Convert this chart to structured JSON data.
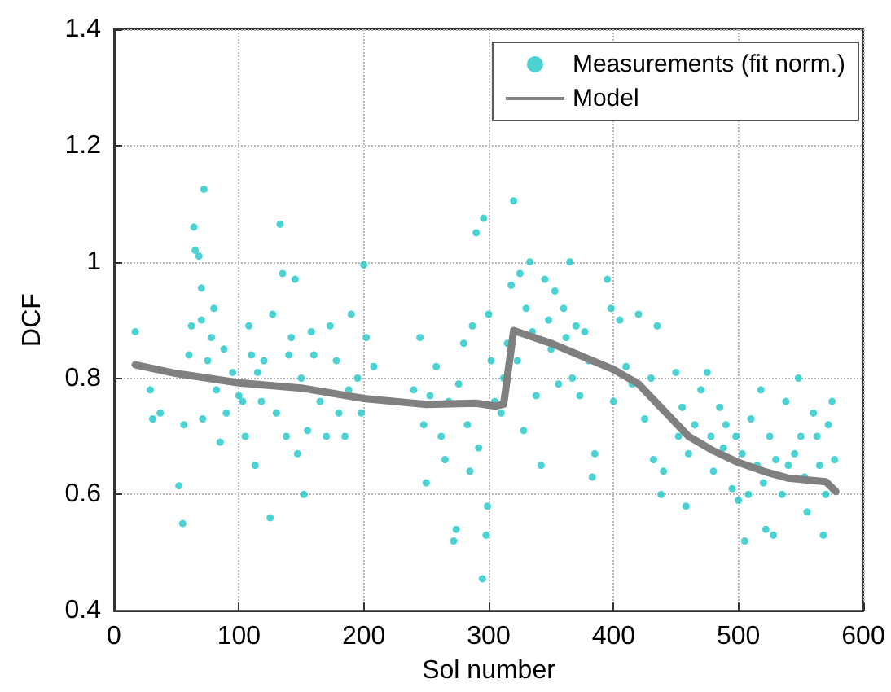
{
  "chart_data": {
    "type": "scatter",
    "xlabel": "Sol number",
    "ylabel": "DCF",
    "xlim": [
      0,
      600
    ],
    "xticks": [
      0,
      100,
      200,
      300,
      400,
      500,
      600
    ],
    "ylim": [
      0.4,
      1.4
    ],
    "yticks": [
      0.4,
      0.6,
      0.8,
      1,
      1.2,
      1.4
    ],
    "grid": true,
    "legend": "top right",
    "marker": "circle",
    "series": [
      {
        "name": "Measurements (fit norm.)",
        "color": "#1ec8c8",
        "x": [
          17,
          29,
          31,
          37,
          52,
          55,
          56,
          60,
          62,
          64,
          65,
          68,
          70,
          70,
          71,
          72,
          75,
          78,
          80,
          82,
          85,
          88,
          90,
          95,
          100,
          103,
          105,
          108,
          110,
          113,
          115,
          118,
          120,
          125,
          127,
          130,
          133,
          135,
          138,
          140,
          142,
          145,
          147,
          150,
          152,
          155,
          158,
          160,
          165,
          170,
          173,
          178,
          180,
          185,
          188,
          190,
          195,
          198,
          200,
          202,
          208,
          240,
          245,
          248,
          250,
          253,
          258,
          262,
          265,
          268,
          272,
          274,
          276,
          280,
          283,
          285,
          287,
          290,
          292,
          295,
          296,
          298,
          299,
          300,
          302,
          305,
          310,
          312,
          315,
          318,
          320,
          323,
          325,
          328,
          330,
          333,
          335,
          338,
          342,
          345,
          348,
          350,
          353,
          356,
          360,
          362,
          365,
          367,
          370,
          373,
          377,
          380,
          383,
          385,
          395,
          398,
          400,
          405,
          410,
          415,
          420,
          425,
          430,
          432,
          435,
          438,
          440,
          450,
          452,
          455,
          458,
          460,
          465,
          470,
          475,
          478,
          480,
          485,
          488,
          490,
          495,
          498,
          500,
          503,
          505,
          508,
          510,
          515,
          518,
          520,
          522,
          525,
          528,
          530,
          535,
          538,
          540,
          545,
          548,
          550,
          553,
          555,
          560,
          563,
          565,
          568,
          570,
          572,
          575,
          577
        ],
        "values": [
          0.88,
          0.78,
          0.73,
          0.74,
          0.615,
          0.55,
          0.72,
          0.84,
          0.89,
          1.06,
          1.02,
          1.01,
          0.955,
          0.9,
          0.73,
          1.125,
          0.83,
          0.87,
          0.92,
          0.78,
          0.69,
          0.85,
          0.74,
          0.81,
          0.77,
          0.76,
          0.7,
          0.89,
          0.84,
          0.65,
          0.81,
          0.76,
          0.83,
          0.56,
          0.91,
          0.74,
          1.065,
          0.98,
          0.7,
          0.84,
          0.87,
          0.97,
          0.67,
          0.8,
          0.6,
          0.71,
          0.88,
          0.84,
          0.76,
          0.7,
          0.89,
          0.83,
          0.74,
          0.7,
          0.78,
          0.91,
          0.8,
          0.74,
          0.995,
          0.87,
          0.82,
          0.78,
          0.87,
          0.72,
          0.62,
          0.77,
          0.82,
          0.7,
          0.66,
          0.76,
          0.52,
          0.54,
          0.79,
          0.86,
          0.72,
          0.64,
          0.89,
          1.05,
          0.68,
          0.455,
          1.075,
          0.53,
          0.58,
          0.91,
          0.83,
          0.76,
          0.74,
          0.8,
          0.86,
          0.96,
          1.105,
          0.83,
          0.98,
          0.71,
          0.92,
          1.0,
          0.88,
          0.77,
          0.65,
          0.97,
          0.9,
          0.85,
          0.95,
          0.79,
          0.92,
          0.87,
          1.0,
          0.8,
          0.89,
          0.77,
          0.88,
          0.83,
          0.63,
          0.67,
          0.97,
          0.92,
          0.76,
          0.9,
          0.82,
          0.79,
          0.91,
          0.73,
          0.8,
          0.66,
          0.89,
          0.6,
          0.64,
          0.81,
          0.7,
          0.75,
          0.58,
          0.67,
          0.72,
          0.78,
          0.81,
          0.7,
          0.64,
          0.75,
          0.68,
          0.72,
          0.61,
          0.7,
          0.59,
          0.67,
          0.52,
          0.6,
          0.73,
          0.65,
          0.78,
          0.62,
          0.54,
          0.7,
          0.53,
          0.66,
          0.6,
          0.76,
          0.65,
          0.67,
          0.8,
          0.7,
          0.63,
          0.57,
          0.74,
          0.7,
          0.65,
          0.53,
          0.6,
          0.72,
          0.76,
          0.66
        ]
      },
      {
        "name": "Model",
        "type": "line",
        "color": "#808080",
        "marker": "none",
        "line_style": "solid",
        "x": [
          17,
          50,
          100,
          150,
          200,
          250,
          290,
          305,
          312,
          320,
          350,
          400,
          420,
          440,
          460,
          480,
          500,
          520,
          540,
          570,
          578
        ],
        "values": [
          0.823,
          0.808,
          0.792,
          0.783,
          0.765,
          0.755,
          0.757,
          0.752,
          0.755,
          0.882,
          0.86,
          0.815,
          0.79,
          0.745,
          0.7,
          0.675,
          0.655,
          0.64,
          0.628,
          0.622,
          0.605
        ]
      }
    ]
  }
}
